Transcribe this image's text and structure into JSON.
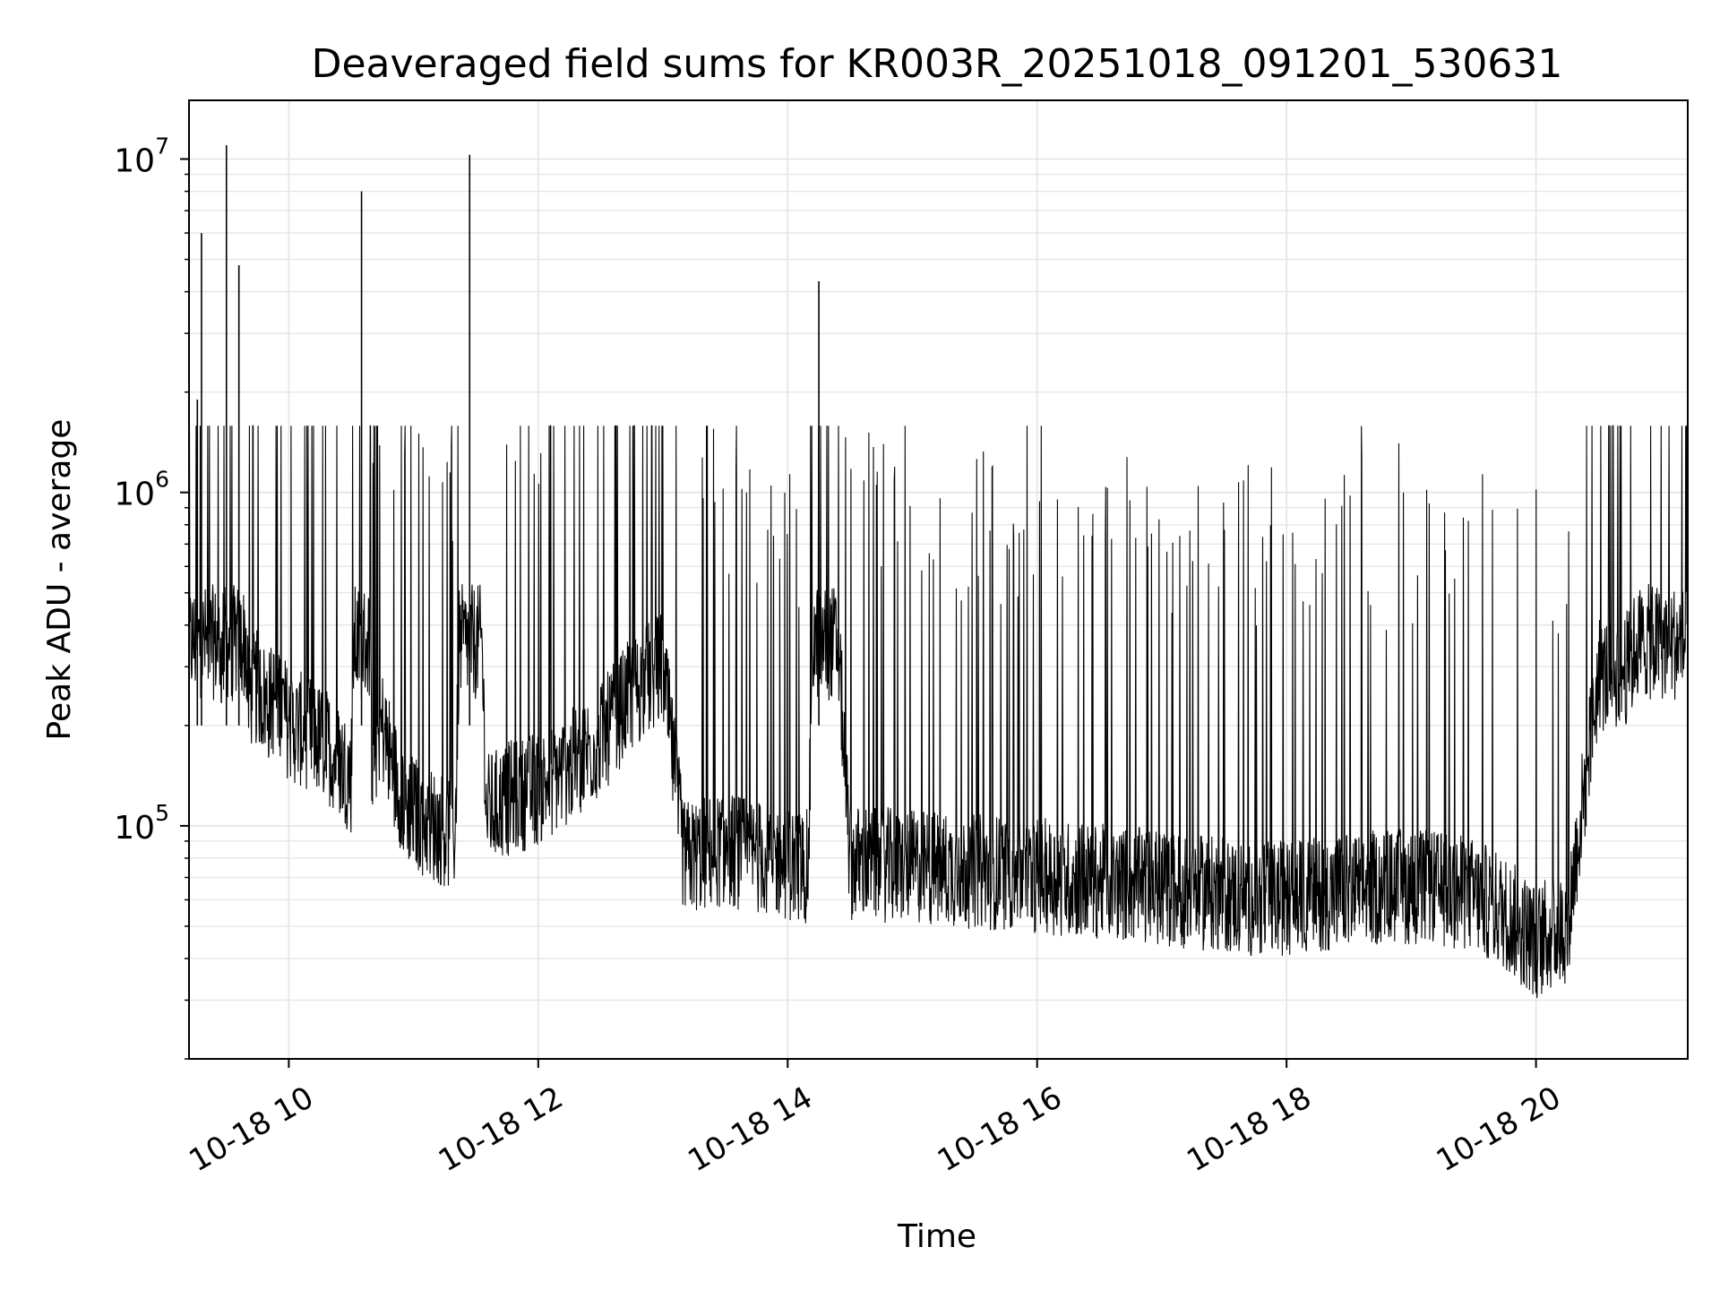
{
  "chart_data": {
    "type": "line",
    "title": "Deaveraged field sums for KR003R_20251018_091201_530631",
    "xlabel": "Time",
    "ylabel": "Peak ADU - average",
    "yscale": "log",
    "ylim": [
      20000,
      15000000
    ],
    "xlim": [
      "2025-10-18T09:12:00",
      "2025-10-18T21:13:00"
    ],
    "grid": true,
    "line_color": "#000000",
    "grid_color": "#e6e6e6",
    "x_ticks": [
      {
        "value": "2025-10-18T10:00:00",
        "label": "10-18 10"
      },
      {
        "value": "2025-10-18T12:00:00",
        "label": "10-18 12"
      },
      {
        "value": "2025-10-18T14:00:00",
        "label": "10-18 14"
      },
      {
        "value": "2025-10-18T16:00:00",
        "label": "10-18 16"
      },
      {
        "value": "2025-10-18T18:00:00",
        "label": "10-18 18"
      },
      {
        "value": "2025-10-18T20:00:00",
        "label": "10-18 20"
      }
    ],
    "y_ticks": [
      {
        "value": 100000,
        "base": "10",
        "exp": "5"
      },
      {
        "value": 1000000,
        "base": "10",
        "exp": "6"
      },
      {
        "value": 10000000,
        "base": "10",
        "exp": "7"
      }
    ],
    "series": [
      {
        "x": [
          "2025-10-18T09:12:00",
          "2025-10-18T09:14:00",
          "2025-10-18T09:16:00",
          "2025-10-18T09:18:00",
          "2025-10-18T09:20:00",
          "2025-10-18T09:22:00",
          "2025-10-18T09:24:00",
          "2025-10-18T09:26:00",
          "2025-10-18T09:28:00",
          "2025-10-18T09:30:00",
          "2025-10-18T09:33:00",
          "2025-10-18T09:36:00",
          "2025-10-18T09:40:00",
          "2025-10-18T09:45:00",
          "2025-10-18T09:50:00",
          "2025-10-18T09:55:00",
          "2025-10-18T10:00:00",
          "2025-10-18T10:10:00",
          "2025-10-18T10:20:00",
          "2025-10-18T10:30:00",
          "2025-10-18T10:35:00",
          "2025-10-18T10:40:00",
          "2025-10-18T10:45:00",
          "2025-10-18T10:50:00",
          "2025-10-18T10:55:00",
          "2025-10-18T11:00:00",
          "2025-10-18T11:10:00",
          "2025-10-18T11:20:00",
          "2025-10-18T11:27:00",
          "2025-10-18T11:35:00",
          "2025-10-18T11:45:00",
          "2025-10-18T12:00:00",
          "2025-10-18T12:15:00",
          "2025-10-18T12:30:00",
          "2025-10-18T12:45:00",
          "2025-10-18T13:00:00",
          "2025-10-18T13:10:00",
          "2025-10-18T13:30:00",
          "2025-10-18T13:50:00",
          "2025-10-18T14:10:00",
          "2025-10-18T14:15:00",
          "2025-10-18T14:30:00",
          "2025-10-18T14:50:00",
          "2025-10-18T15:10:00",
          "2025-10-18T15:30:00",
          "2025-10-18T15:50:00",
          "2025-10-18T16:10:00",
          "2025-10-18T16:30:00",
          "2025-10-18T16:50:00",
          "2025-10-18T17:10:00",
          "2025-10-18T17:30:00",
          "2025-10-18T17:50:00",
          "2025-10-18T18:10:00",
          "2025-10-18T18:30:00",
          "2025-10-18T18:50:00",
          "2025-10-18T19:10:00",
          "2025-10-18T19:30:00",
          "2025-10-18T19:45:00",
          "2025-10-18T20:00:00",
          "2025-10-18T20:15:00",
          "2025-10-18T20:30:00",
          "2025-10-18T20:45:00",
          "2025-10-18T20:55:00",
          "2025-10-18T21:00:00",
          "2025-10-18T21:05:00",
          "2025-10-18T21:10:00",
          "2025-10-18T21:13:00"
        ],
        "y": [
          1000000,
          1300000,
          1900000,
          6000000,
          700000,
          600000,
          1100000,
          400000,
          300000,
          11000000,
          280000,
          4800000,
          250000,
          260000,
          230000,
          250000,
          200000,
          190000,
          170000,
          140000,
          8000000,
          160000,
          200000,
          150000,
          120000,
          110000,
          100000,
          95000,
          10300000,
          110000,
          120000,
          130000,
          150000,
          180000,
          250000,
          300000,
          80000,
          85000,
          80000,
          75000,
          4300000,
          78000,
          76000,
          75000,
          73000,
          72000,
          70000,
          68000,
          66000,
          64000,
          62000,
          60000,
          62000,
          64000,
          66000,
          65000,
          62000,
          55000,
          45000,
          50000,
          280000,
          300000,
          500000,
          900000,
          1000000,
          800000,
          600000
        ]
      }
    ]
  }
}
